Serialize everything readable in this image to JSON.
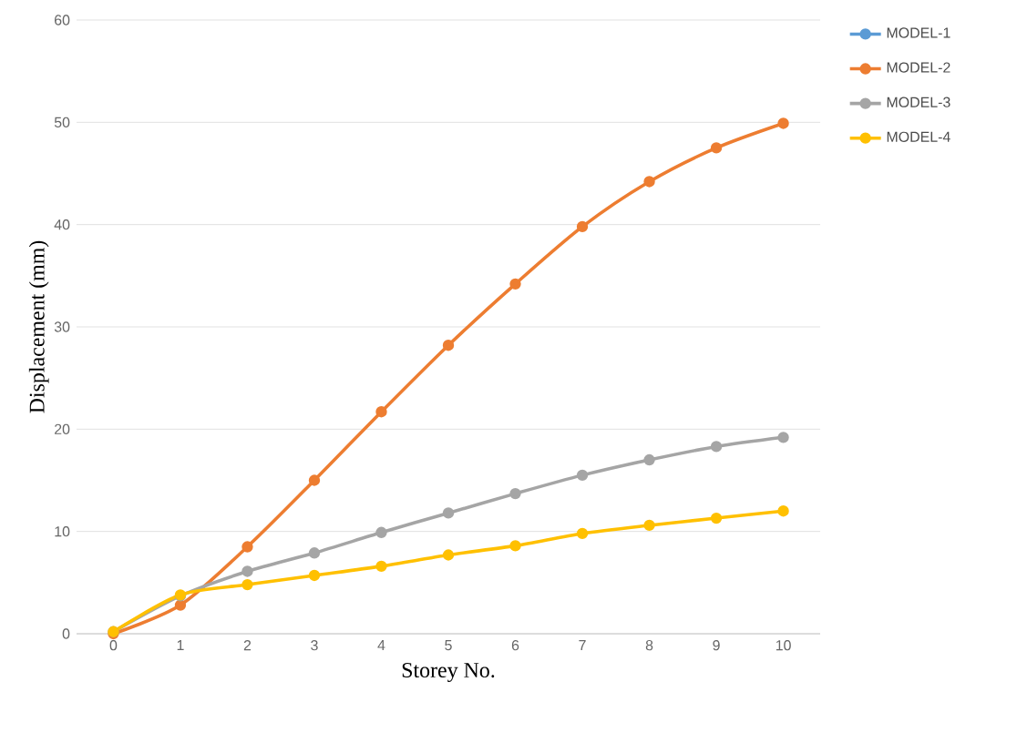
{
  "chart_data": {
    "type": "line",
    "xlabel": "Storey No.",
    "ylabel": "Displacement (mm)",
    "categories": [
      "0",
      "1",
      "2",
      "3",
      "4",
      "5",
      "6",
      "7",
      "8",
      "9",
      "10"
    ],
    "ylim": [
      0,
      60
    ],
    "yticks": [
      0,
      10,
      20,
      30,
      40,
      50,
      60
    ],
    "grid": "y",
    "legend": "right",
    "marker": "circle",
    "line_style": "solid",
    "series": [
      {
        "name": "MODEL-1",
        "color": "#5b9bd5",
        "values": [
          null,
          null,
          null,
          null,
          null,
          null,
          null,
          null,
          null,
          null,
          null
        ]
      },
      {
        "name": "MODEL-2",
        "color": "#ed7d31",
        "values": [
          0,
          2.8,
          8.5,
          15,
          21.7,
          28.2,
          34.2,
          39.8,
          44.2,
          47.5,
          49.9
        ]
      },
      {
        "name": "MODEL-3",
        "color": "#a5a5a5",
        "values": [
          0.2,
          3.7,
          6.1,
          7.9,
          9.9,
          11.8,
          13.7,
          15.5,
          17,
          18.3,
          19.2
        ]
      },
      {
        "name": "MODEL-4",
        "color": "#ffc000",
        "values": [
          0.2,
          3.8,
          4.8,
          5.7,
          6.6,
          7.7,
          8.6,
          9.8,
          10.6,
          11.3,
          12
        ]
      }
    ]
  }
}
